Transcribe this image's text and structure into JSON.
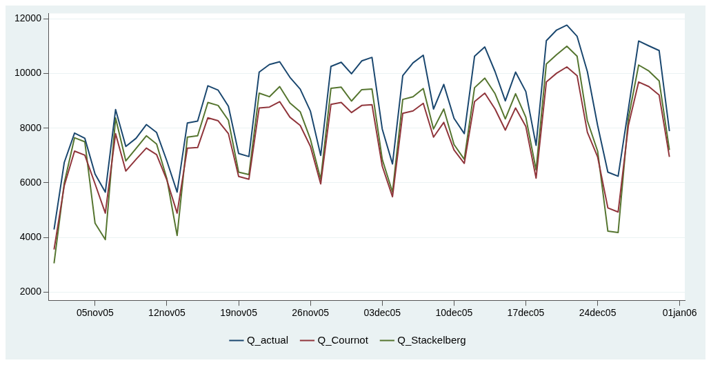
{
  "chart_data": {
    "type": "line",
    "categories": [
      null,
      null,
      null,
      null,
      "05nov05",
      null,
      null,
      null,
      null,
      null,
      null,
      "12nov05",
      null,
      null,
      null,
      null,
      null,
      null,
      "19nov05",
      null,
      null,
      null,
      null,
      null,
      null,
      "26nov05",
      null,
      null,
      null,
      null,
      null,
      null,
      "03dec05",
      null,
      null,
      null,
      null,
      null,
      null,
      "10dec05",
      null,
      null,
      null,
      null,
      null,
      null,
      "17dec05",
      null,
      null,
      null,
      null,
      null,
      null,
      "24dec05",
      null,
      null,
      null,
      null,
      null,
      null,
      null,
      "01jan06"
    ],
    "series": [
      {
        "name": "Q_actual",
        "color": "#1a476f",
        "values": [
          4290,
          6750,
          7820,
          7630,
          6320,
          5660,
          8680,
          7330,
          7630,
          8130,
          7840,
          6800,
          5660,
          8190,
          8260,
          9550,
          9390,
          8800,
          7070,
          6960,
          10050,
          10330,
          10430,
          9860,
          9430,
          8620,
          7000,
          10260,
          10410,
          9990,
          10460,
          10590,
          7970,
          6690,
          9920,
          10390,
          10670,
          8700,
          9600,
          8360,
          7800,
          10630,
          10970,
          10070,
          9000,
          10050,
          9340,
          7370,
          11200,
          11590,
          11770,
          11360,
          10070,
          8100,
          6390,
          6240,
          8700,
          11190,
          11010,
          10840,
          7890,
          null
        ]
      },
      {
        "name": "Q_Cournot",
        "color": "#90353b",
        "values": [
          3560,
          5900,
          7160,
          7010,
          5960,
          4890,
          7800,
          6430,
          6860,
          7270,
          7030,
          6100,
          4890,
          7270,
          7290,
          8380,
          8270,
          7800,
          6230,
          6130,
          8740,
          8770,
          8970,
          8400,
          8100,
          7330,
          5960,
          8870,
          8940,
          8570,
          8830,
          8860,
          6610,
          5490,
          8540,
          8630,
          8910,
          7670,
          8210,
          7200,
          6710,
          8970,
          9280,
          8700,
          7930,
          8740,
          8060,
          6170,
          9690,
          10010,
          10240,
          9920,
          7850,
          6950,
          5080,
          4930,
          8100,
          9690,
          9520,
          9210,
          6950,
          null
        ]
      },
      {
        "name": "Q_Stackelberg",
        "color": "#55752f",
        "values": [
          3050,
          6000,
          7650,
          7500,
          4520,
          3920,
          8370,
          6800,
          7260,
          7720,
          7420,
          6150,
          4070,
          7670,
          7720,
          8940,
          8830,
          8290,
          6390,
          6300,
          9280,
          9150,
          9520,
          8920,
          8600,
          7590,
          6130,
          9460,
          9500,
          8990,
          9410,
          9430,
          6860,
          5660,
          9050,
          9150,
          9450,
          7970,
          8700,
          7400,
          6860,
          9480,
          9830,
          9260,
          8340,
          9260,
          8400,
          6470,
          10350,
          10690,
          11000,
          10630,
          8270,
          7160,
          4230,
          4180,
          8360,
          10310,
          10090,
          9730,
          7200,
          null
        ]
      }
    ],
    "ylim": [
      1700,
      12200
    ],
    "yticks": [
      2000,
      4000,
      6000,
      8000,
      10000,
      12000
    ],
    "grid": "y",
    "legend": "bottom"
  }
}
